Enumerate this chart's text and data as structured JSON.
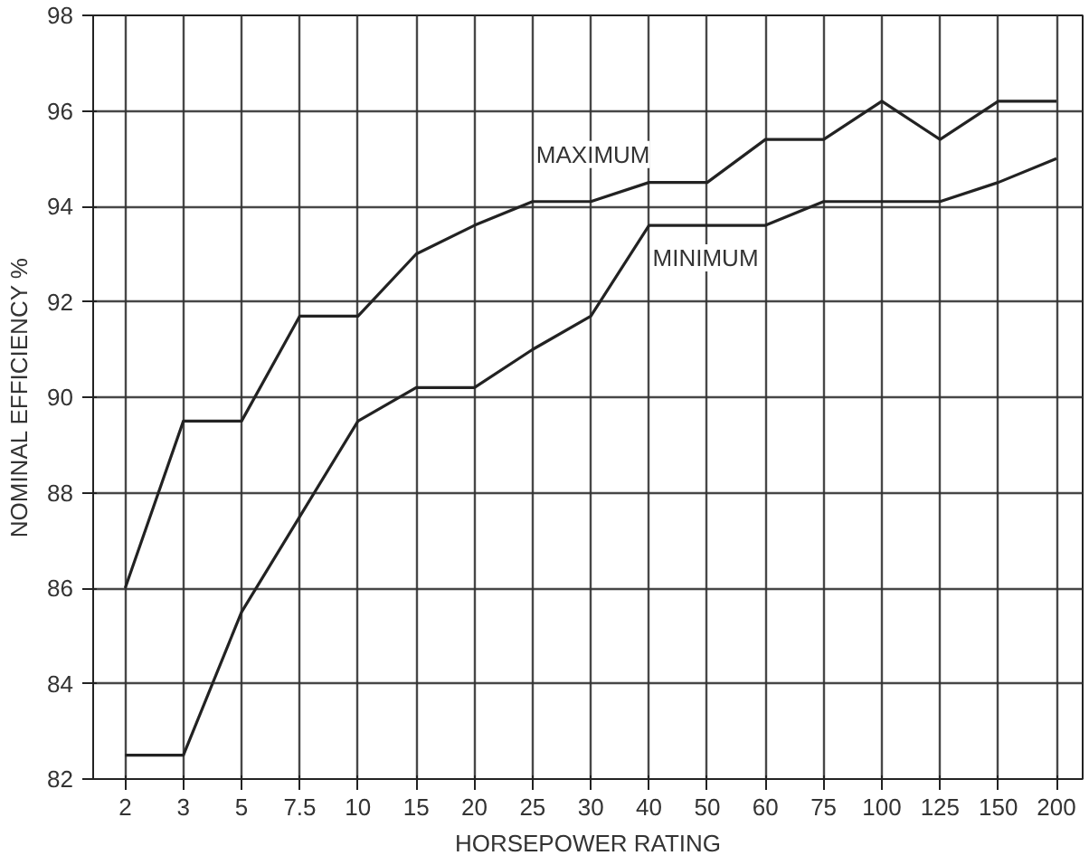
{
  "chart_data": {
    "type": "line",
    "xlabel": "HORSEPOWER RATING",
    "ylabel": "NOMINAL EFFICIENCY %",
    "categories": [
      "2",
      "3",
      "5",
      "7.5",
      "10",
      "15",
      "20",
      "25",
      "30",
      "40",
      "50",
      "60",
      "75",
      "100",
      "125",
      "150",
      "200"
    ],
    "series": [
      {
        "name": "MAXIMUM",
        "color": "#222222",
        "values": [
          86.0,
          89.5,
          89.5,
          91.7,
          91.7,
          93.0,
          93.6,
          94.1,
          94.1,
          94.5,
          94.5,
          95.4,
          95.4,
          96.2,
          95.4,
          96.2,
          96.2
        ]
      },
      {
        "name": "MINIMUM",
        "color": "#222222",
        "values": [
          82.5,
          82.5,
          85.5,
          87.5,
          89.5,
          90.2,
          90.2,
          91.0,
          91.7,
          93.6,
          93.6,
          93.6,
          94.1,
          94.1,
          94.1,
          94.5,
          95.0
        ]
      }
    ],
    "ylim": [
      82,
      98
    ],
    "yticks": [
      82,
      84,
      86,
      88,
      90,
      92,
      94,
      96,
      98
    ],
    "grid": true,
    "marker": "none",
    "line_style": "solid"
  }
}
